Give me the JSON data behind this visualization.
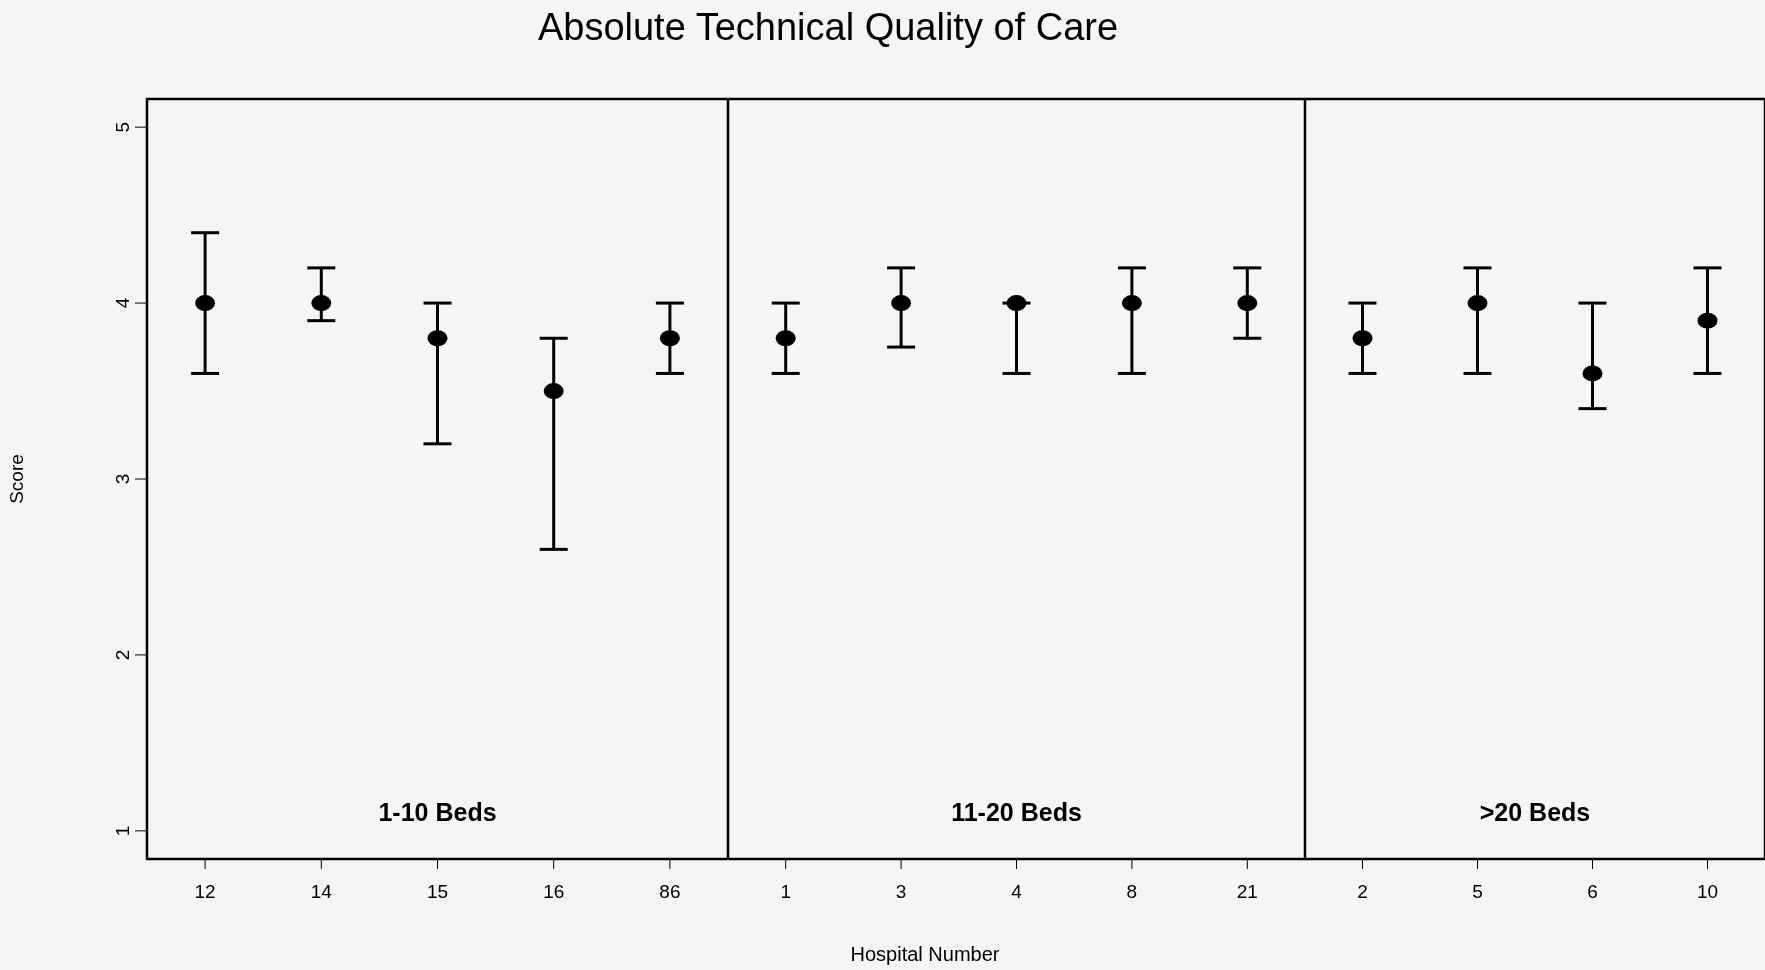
{
  "chart_data": [
    {
      "type": "scatter",
      "title": "Absolute Technical Quality of Care",
      "ylabel": "Score",
      "categories": [
        "12",
        "14",
        "15",
        "16",
        "86"
      ],
      "values": [
        4.0,
        4.0,
        3.8,
        3.5,
        3.8
      ],
      "errors": [
        [
          3.6,
          4.4
        ],
        [
          3.9,
          4.2
        ],
        [
          3.2,
          4.0
        ],
        [
          2.6,
          3.8
        ],
        [
          3.6,
          4.0
        ]
      ],
      "color": "#000000",
      "marker": "circle",
      "ylim": [
        0.84,
        5.16
      ],
      "yticks": [
        1,
        2,
        3,
        4,
        5
      ],
      "annotations": [
        "1-10 Beds"
      ]
    },
    {
      "type": "scatter",
      "xlabel": "Hospital Number",
      "categories": [
        "1",
        "3",
        "4",
        "8",
        "21"
      ],
      "values": [
        3.8,
        4.0,
        4.0,
        4.0,
        4.0
      ],
      "errors": [
        [
          3.6,
          4.0
        ],
        [
          3.75,
          4.2
        ],
        [
          3.6,
          4.0
        ],
        [
          3.6,
          4.2
        ],
        [
          3.8,
          4.2
        ]
      ],
      "color": "#000000",
      "marker": "circle",
      "ylim": [
        0.84,
        5.16
      ],
      "yticks": [
        1,
        2,
        3,
        4,
        5
      ],
      "tick_labels": "x",
      "annotations": [
        "11-20 Beds"
      ]
    },
    {
      "type": "scatter",
      "categories": [
        "2",
        "5",
        "6",
        "10"
      ],
      "values": [
        3.8,
        4.0,
        3.6,
        3.9
      ],
      "errors": [
        [
          3.6,
          4.0
        ],
        [
          3.6,
          4.2
        ],
        [
          3.4,
          4.0
        ],
        [
          3.6,
          4.2
        ]
      ],
      "color": "#000000",
      "marker": "circle",
      "ylim": [
        0.84,
        5.16
      ],
      "yticks": [
        1,
        2,
        3,
        4,
        5
      ],
      "tick_labels": "x",
      "annotations": [
        ">20 Beds"
      ]
    }
  ]
}
